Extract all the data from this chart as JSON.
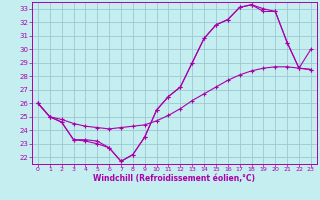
{
  "xlabel": "Windchill (Refroidissement éolien,°C)",
  "bg_color": "#c5eef0",
  "grid_color": "#9dc8d4",
  "line_color": "#aa00aa",
  "axis_color": "#aa00aa",
  "xlim": [
    -0.5,
    23.5
  ],
  "ylim": [
    21.5,
    33.5
  ],
  "xticks": [
    0,
    1,
    2,
    3,
    4,
    5,
    6,
    7,
    8,
    9,
    10,
    11,
    12,
    13,
    14,
    15,
    16,
    17,
    18,
    19,
    20,
    21,
    22,
    23
  ],
  "yticks": [
    22,
    23,
    24,
    25,
    26,
    27,
    28,
    29,
    30,
    31,
    32,
    33
  ],
  "s1_x": [
    0,
    1,
    2,
    3,
    4,
    5,
    6,
    7,
    8,
    9,
    10,
    11,
    12,
    13,
    14,
    15,
    16,
    17,
    18,
    19,
    20,
    21,
    22,
    23
  ],
  "s1_y": [
    26.0,
    25.0,
    24.6,
    23.3,
    23.3,
    23.2,
    22.7,
    21.7,
    22.2,
    23.5,
    25.5,
    26.5,
    27.2,
    29.0,
    30.8,
    31.8,
    32.2,
    33.1,
    33.3,
    32.8,
    32.8,
    30.5,
    28.6,
    30.0
  ],
  "s2_x": [
    0,
    1,
    2,
    3,
    4,
    5,
    6,
    7,
    8,
    9,
    10,
    11,
    12,
    13,
    14,
    15,
    16,
    17,
    18,
    19,
    20,
    21,
    22,
    23
  ],
  "s2_y": [
    26.0,
    25.0,
    24.8,
    24.5,
    24.3,
    24.2,
    24.1,
    24.2,
    24.3,
    24.4,
    24.7,
    25.1,
    25.6,
    26.2,
    26.7,
    27.2,
    27.7,
    28.1,
    28.4,
    28.6,
    28.7,
    28.7,
    28.6,
    28.5
  ],
  "s3_x": [
    0,
    1,
    2,
    3,
    4,
    5,
    6,
    7,
    8,
    9,
    10,
    11,
    12,
    13,
    14,
    15,
    16,
    17,
    18,
    19,
    20,
    21,
    22,
    23
  ],
  "s3_y": [
    26.0,
    25.0,
    24.6,
    23.3,
    23.2,
    23.0,
    22.7,
    21.7,
    22.2,
    23.5,
    25.5,
    26.5,
    27.2,
    29.0,
    30.8,
    31.8,
    32.2,
    33.1,
    33.3,
    33.0,
    32.8,
    30.5,
    28.6,
    28.5
  ]
}
